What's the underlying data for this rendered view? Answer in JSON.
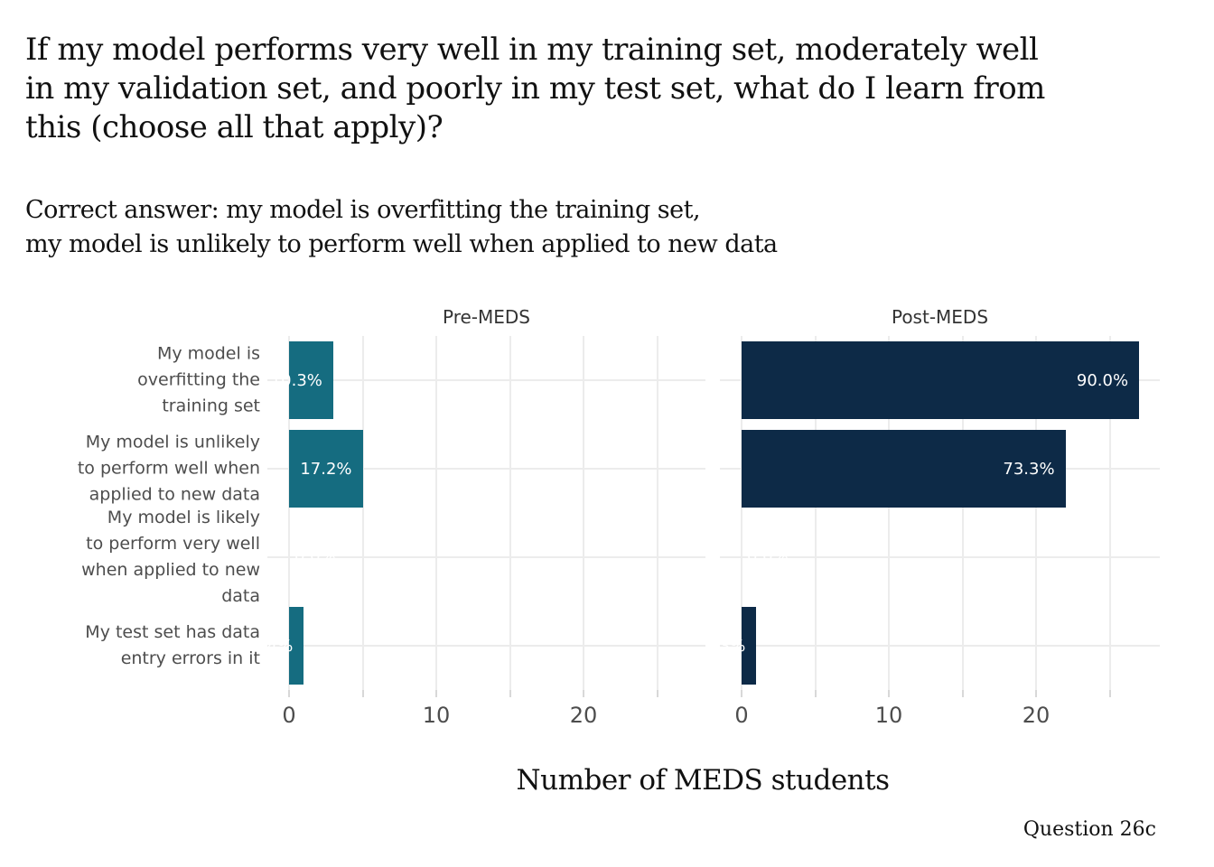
{
  "page": {
    "title": "If my model performs very well in my training set, moderately well\nin my validation set, and poorly in my test set, what do I learn from\nthis (choose all that apply)?",
    "subtitle": "Correct answer: my model is overfitting the training set,\nmy model is unlikely to perform well when applied to new data",
    "caption": "Question 26c"
  },
  "chart_data": {
    "type": "bar",
    "orientation": "horizontal",
    "xlabel": "Number of MEDS students",
    "x_ticks": [
      0,
      10,
      20
    ],
    "x_gridlines": [
      0,
      5,
      10,
      15,
      20,
      25
    ],
    "xlim": [
      0,
      28.3
    ],
    "grid": true,
    "legend": "none",
    "categories": [
      "My model is overfitting the training set",
      "My model is unlikely to perform well when applied to new data",
      "My model is likely to perform very well when applied to new data",
      "My test set has data entry errors in it"
    ],
    "category_lines": [
      [
        "My model is",
        "overfitting the",
        "training set"
      ],
      [
        "My model is unlikely",
        "to perform well when",
        "applied to new data"
      ],
      [
        "My model is likely",
        "to perform very well",
        "when applied to new",
        "data"
      ],
      [
        "My test set has data",
        "entry errors in it"
      ]
    ],
    "facets": [
      {
        "label": "Pre-MEDS",
        "color": "#156C80",
        "values": [
          3,
          5,
          0,
          1
        ],
        "bar_labels": [
          "10.3%",
          "17.2%",
          "0.0%",
          "3.4%"
        ]
      },
      {
        "label": "Post-MEDS",
        "color": "#0D2A47",
        "values": [
          27,
          22,
          0,
          1
        ],
        "bar_labels": [
          "90.0%",
          "73.3%",
          "0.0%",
          "3.3%"
        ]
      }
    ],
    "colors": {
      "grid": "#ECECEC",
      "tick": "#D8D8D8",
      "axis_text": "#4D4D4D",
      "facet_text": "#333333",
      "bar_label_text": "#FFFFFF"
    }
  }
}
